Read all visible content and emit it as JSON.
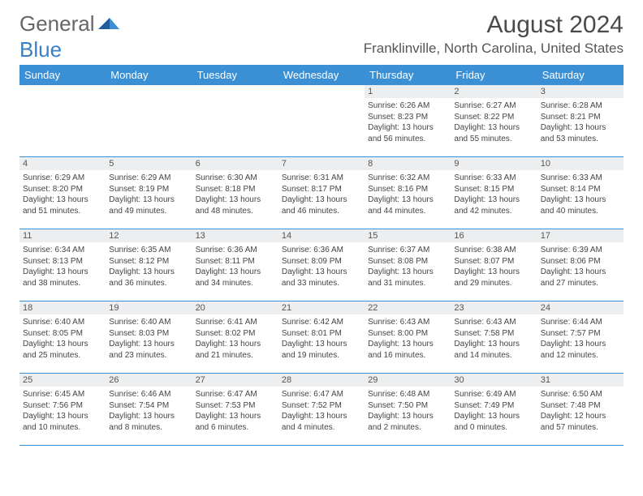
{
  "logo": {
    "part1": "General",
    "part2": "Blue"
  },
  "title": "August 2024",
  "location": "Franklinville, North Carolina, United States",
  "colors": {
    "header_bg": "#3b8fd4",
    "header_text": "#ffffff",
    "daynum_bg": "#edeeef",
    "text": "#444444",
    "logo_blue": "#3b7fc4",
    "logo_gray": "#666666"
  },
  "weekdays": [
    "Sunday",
    "Monday",
    "Tuesday",
    "Wednesday",
    "Thursday",
    "Friday",
    "Saturday"
  ],
  "weeks": [
    [
      {
        "day": "",
        "sunrise": "",
        "sunset": "",
        "daylight": ""
      },
      {
        "day": "",
        "sunrise": "",
        "sunset": "",
        "daylight": ""
      },
      {
        "day": "",
        "sunrise": "",
        "sunset": "",
        "daylight": ""
      },
      {
        "day": "",
        "sunrise": "",
        "sunset": "",
        "daylight": ""
      },
      {
        "day": "1",
        "sunrise": "Sunrise: 6:26 AM",
        "sunset": "Sunset: 8:23 PM",
        "daylight": "Daylight: 13 hours and 56 minutes."
      },
      {
        "day": "2",
        "sunrise": "Sunrise: 6:27 AM",
        "sunset": "Sunset: 8:22 PM",
        "daylight": "Daylight: 13 hours and 55 minutes."
      },
      {
        "day": "3",
        "sunrise": "Sunrise: 6:28 AM",
        "sunset": "Sunset: 8:21 PM",
        "daylight": "Daylight: 13 hours and 53 minutes."
      }
    ],
    [
      {
        "day": "4",
        "sunrise": "Sunrise: 6:29 AM",
        "sunset": "Sunset: 8:20 PM",
        "daylight": "Daylight: 13 hours and 51 minutes."
      },
      {
        "day": "5",
        "sunrise": "Sunrise: 6:29 AM",
        "sunset": "Sunset: 8:19 PM",
        "daylight": "Daylight: 13 hours and 49 minutes."
      },
      {
        "day": "6",
        "sunrise": "Sunrise: 6:30 AM",
        "sunset": "Sunset: 8:18 PM",
        "daylight": "Daylight: 13 hours and 48 minutes."
      },
      {
        "day": "7",
        "sunrise": "Sunrise: 6:31 AM",
        "sunset": "Sunset: 8:17 PM",
        "daylight": "Daylight: 13 hours and 46 minutes."
      },
      {
        "day": "8",
        "sunrise": "Sunrise: 6:32 AM",
        "sunset": "Sunset: 8:16 PM",
        "daylight": "Daylight: 13 hours and 44 minutes."
      },
      {
        "day": "9",
        "sunrise": "Sunrise: 6:33 AM",
        "sunset": "Sunset: 8:15 PM",
        "daylight": "Daylight: 13 hours and 42 minutes."
      },
      {
        "day": "10",
        "sunrise": "Sunrise: 6:33 AM",
        "sunset": "Sunset: 8:14 PM",
        "daylight": "Daylight: 13 hours and 40 minutes."
      }
    ],
    [
      {
        "day": "11",
        "sunrise": "Sunrise: 6:34 AM",
        "sunset": "Sunset: 8:13 PM",
        "daylight": "Daylight: 13 hours and 38 minutes."
      },
      {
        "day": "12",
        "sunrise": "Sunrise: 6:35 AM",
        "sunset": "Sunset: 8:12 PM",
        "daylight": "Daylight: 13 hours and 36 minutes."
      },
      {
        "day": "13",
        "sunrise": "Sunrise: 6:36 AM",
        "sunset": "Sunset: 8:11 PM",
        "daylight": "Daylight: 13 hours and 34 minutes."
      },
      {
        "day": "14",
        "sunrise": "Sunrise: 6:36 AM",
        "sunset": "Sunset: 8:09 PM",
        "daylight": "Daylight: 13 hours and 33 minutes."
      },
      {
        "day": "15",
        "sunrise": "Sunrise: 6:37 AM",
        "sunset": "Sunset: 8:08 PM",
        "daylight": "Daylight: 13 hours and 31 minutes."
      },
      {
        "day": "16",
        "sunrise": "Sunrise: 6:38 AM",
        "sunset": "Sunset: 8:07 PM",
        "daylight": "Daylight: 13 hours and 29 minutes."
      },
      {
        "day": "17",
        "sunrise": "Sunrise: 6:39 AM",
        "sunset": "Sunset: 8:06 PM",
        "daylight": "Daylight: 13 hours and 27 minutes."
      }
    ],
    [
      {
        "day": "18",
        "sunrise": "Sunrise: 6:40 AM",
        "sunset": "Sunset: 8:05 PM",
        "daylight": "Daylight: 13 hours and 25 minutes."
      },
      {
        "day": "19",
        "sunrise": "Sunrise: 6:40 AM",
        "sunset": "Sunset: 8:03 PM",
        "daylight": "Daylight: 13 hours and 23 minutes."
      },
      {
        "day": "20",
        "sunrise": "Sunrise: 6:41 AM",
        "sunset": "Sunset: 8:02 PM",
        "daylight": "Daylight: 13 hours and 21 minutes."
      },
      {
        "day": "21",
        "sunrise": "Sunrise: 6:42 AM",
        "sunset": "Sunset: 8:01 PM",
        "daylight": "Daylight: 13 hours and 19 minutes."
      },
      {
        "day": "22",
        "sunrise": "Sunrise: 6:43 AM",
        "sunset": "Sunset: 8:00 PM",
        "daylight": "Daylight: 13 hours and 16 minutes."
      },
      {
        "day": "23",
        "sunrise": "Sunrise: 6:43 AM",
        "sunset": "Sunset: 7:58 PM",
        "daylight": "Daylight: 13 hours and 14 minutes."
      },
      {
        "day": "24",
        "sunrise": "Sunrise: 6:44 AM",
        "sunset": "Sunset: 7:57 PM",
        "daylight": "Daylight: 13 hours and 12 minutes."
      }
    ],
    [
      {
        "day": "25",
        "sunrise": "Sunrise: 6:45 AM",
        "sunset": "Sunset: 7:56 PM",
        "daylight": "Daylight: 13 hours and 10 minutes."
      },
      {
        "day": "26",
        "sunrise": "Sunrise: 6:46 AM",
        "sunset": "Sunset: 7:54 PM",
        "daylight": "Daylight: 13 hours and 8 minutes."
      },
      {
        "day": "27",
        "sunrise": "Sunrise: 6:47 AM",
        "sunset": "Sunset: 7:53 PM",
        "daylight": "Daylight: 13 hours and 6 minutes."
      },
      {
        "day": "28",
        "sunrise": "Sunrise: 6:47 AM",
        "sunset": "Sunset: 7:52 PM",
        "daylight": "Daylight: 13 hours and 4 minutes."
      },
      {
        "day": "29",
        "sunrise": "Sunrise: 6:48 AM",
        "sunset": "Sunset: 7:50 PM",
        "daylight": "Daylight: 13 hours and 2 minutes."
      },
      {
        "day": "30",
        "sunrise": "Sunrise: 6:49 AM",
        "sunset": "Sunset: 7:49 PM",
        "daylight": "Daylight: 13 hours and 0 minutes."
      },
      {
        "day": "31",
        "sunrise": "Sunrise: 6:50 AM",
        "sunset": "Sunset: 7:48 PM",
        "daylight": "Daylight: 12 hours and 57 minutes."
      }
    ]
  ]
}
